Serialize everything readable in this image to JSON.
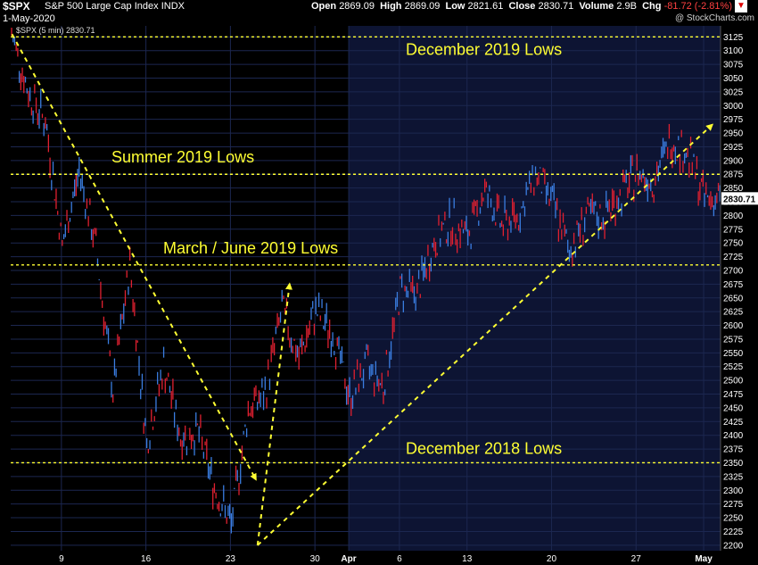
{
  "header": {
    "symbol": "$SPX",
    "description": "S&P 500 Large Cap Index",
    "exchange": "INDX",
    "date": "1-May-2020",
    "brand": "@ StockCharts.com",
    "open_label": "Open",
    "open": "2869.09",
    "high_label": "High",
    "high": "2869.09",
    "low_label": "Low",
    "low": "2821.61",
    "close_label": "Close",
    "close": "2830.71",
    "volume_label": "Volume",
    "volume": "2.9B",
    "chg_label": "Chg",
    "chg": "-81.72 (-2.81%)",
    "chg_icon": "down-arrow-icon"
  },
  "legend": "$SPX (5 min) 2830.71",
  "colors": {
    "background": "#000000",
    "shaded_region": "#0d1433",
    "grid": "#1c2750",
    "up_bar": "#3a7de0",
    "down_bar": "#e02030",
    "annotation": "#ffff33",
    "last_price_tag": "#ffffff"
  },
  "chart_data": {
    "type": "line",
    "series": [
      {
        "name": "$SPX (5 min)",
        "x": [
          "Mar 4",
          "Mar 5",
          "Mar 6",
          "Mar 9",
          "Mar 10",
          "Mar 11",
          "Mar 12",
          "Mar 13",
          "Mar 16",
          "Mar 17",
          "Mar 18",
          "Mar 19",
          "Mar 20",
          "Mar 23",
          "Mar 24",
          "Mar 25",
          "Mar 26",
          "Mar 27",
          "Mar 30",
          "Mar 31",
          "Apr 1",
          "Apr 2",
          "Apr 3",
          "Apr 6",
          "Apr 7",
          "Apr 8",
          "Apr 9",
          "Apr 13",
          "Apr 14",
          "Apr 15",
          "Apr 16",
          "Apr 17",
          "Apr 20",
          "Apr 21",
          "Apr 22",
          "Apr 23",
          "Apr 24",
          "Apr 27",
          "Apr 28",
          "Apr 29",
          "Apr 30",
          "May 1"
        ],
        "values": [
          3130,
          3023,
          2972,
          2746,
          2882,
          2741,
          2480,
          2711,
          2386,
          2529,
          2398,
          2409,
          2305,
          2237,
          2448,
          2476,
          2630,
          2541,
          2627,
          2585,
          2471,
          2527,
          2489,
          2664,
          2659,
          2750,
          2790,
          2762,
          2846,
          2783,
          2800,
          2875,
          2823,
          2737,
          2799,
          2798,
          2837,
          2878,
          2863,
          2939,
          2912,
          2831
        ]
      }
    ],
    "x_tick_labels": [
      "9",
      "16",
      "23",
      "30",
      "Apr",
      "6",
      "13",
      "20",
      "27",
      "May"
    ],
    "y_tick_labels": [
      2200,
      2225,
      2250,
      2275,
      2300,
      2325,
      2350,
      2375,
      2400,
      2425,
      2450,
      2475,
      2500,
      2525,
      2550,
      2575,
      2600,
      2625,
      2650,
      2675,
      2700,
      2725,
      2750,
      2775,
      2800,
      2825,
      2850,
      2875,
      2900,
      2925,
      2950,
      2975,
      3000,
      3025,
      3050,
      3075,
      3100,
      3125
    ],
    "ylim": [
      2190,
      3145
    ],
    "last_value_label": "2830.71",
    "horizontal_lines": [
      {
        "label": "December 2019 Lows",
        "value": 3125
      },
      {
        "label": "Summer 2019 Lows",
        "value": 2875
      },
      {
        "label": "March / June 2019 Lows",
        "value": 2710
      },
      {
        "label": "December 2018 Lows",
        "value": 2350
      }
    ],
    "trend_lines": [
      {
        "from": [
          "Mar 4",
          3130
        ],
        "to": [
          "Mar 24",
          2320
        ]
      },
      {
        "from": [
          "Mar 24",
          2200
        ],
        "to": [
          "May 1",
          2965
        ]
      },
      {
        "from": [
          "Mar 24",
          2200
        ],
        "to": [
          "Mar 26",
          2675
        ]
      }
    ],
    "grid": true,
    "shaded_period": [
      "Apr 1",
      "May 1"
    ],
    "legend_position": "top-left"
  }
}
